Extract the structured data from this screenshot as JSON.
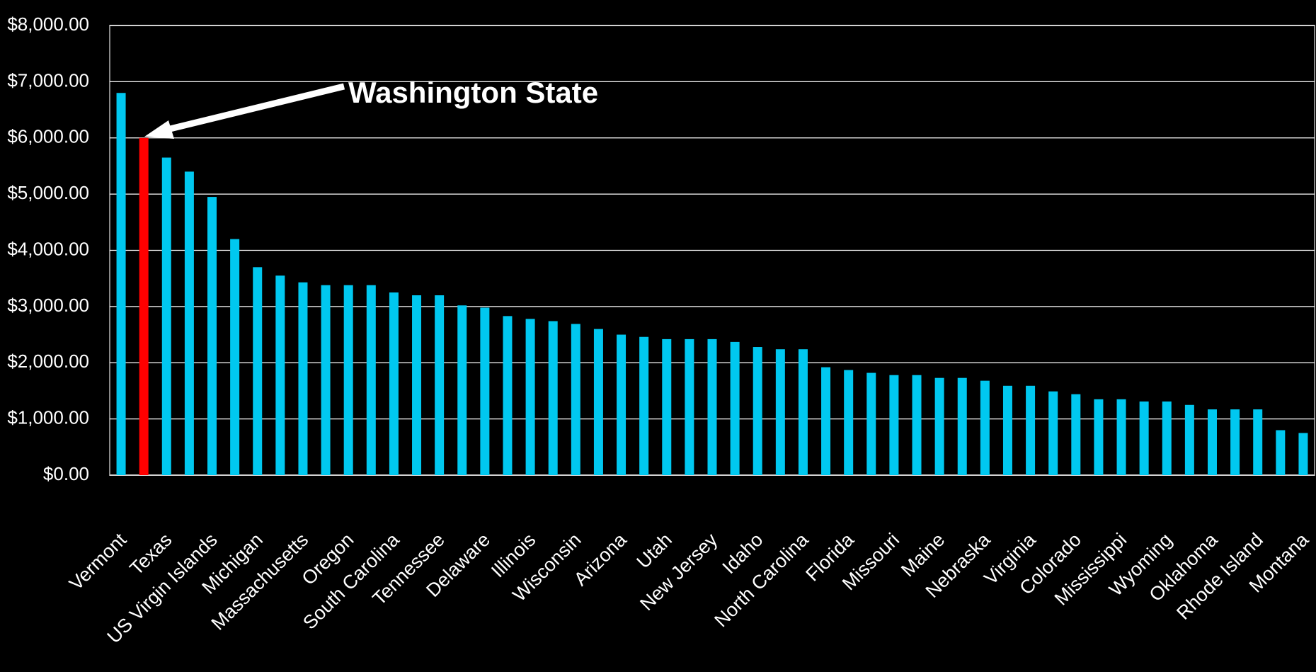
{
  "chart_data": {
    "type": "bar",
    "annotation": "Washington State",
    "categories": [
      "Vermont",
      null,
      "Texas",
      null,
      "US Virgin Islands",
      null,
      "Michigan",
      null,
      "Massachusetts",
      null,
      "Oregon",
      null,
      "South Carolina",
      null,
      "Tennessee",
      null,
      "Delaware",
      null,
      "Illinois",
      null,
      "Wisconsin",
      null,
      "Arizona",
      null,
      "Utah",
      null,
      "New Jersey",
      null,
      "Idaho",
      null,
      "North Carolina",
      null,
      "Florida",
      null,
      "Missouri",
      null,
      "Maine",
      null,
      "Nebraska",
      null,
      "Virginia",
      null,
      "Colorado",
      null,
      "Mississippi",
      null,
      "Wyoming",
      null,
      "Oklahoma",
      null,
      "Rhode Island",
      null,
      "Montana"
    ],
    "values": [
      6800,
      6000,
      5650,
      5400,
      4950,
      4200,
      3700,
      3550,
      3430,
      3380,
      3380,
      3380,
      3250,
      3200,
      3200,
      3020,
      2980,
      2830,
      2780,
      2740,
      2690,
      2600,
      2500,
      2460,
      2420,
      2420,
      2420,
      2370,
      2280,
      2240,
      2240,
      1920,
      1870,
      1820,
      1780,
      1780,
      1730,
      1730,
      1680,
      1590,
      1590,
      1490,
      1440,
      1350,
      1350,
      1310,
      1310,
      1250,
      1170,
      1170,
      1170,
      800,
      750
    ],
    "colors": [
      "#00c8f0",
      "#ff0000",
      "#00c8f0",
      "#00c8f0",
      "#00c8f0",
      "#00c8f0",
      "#00c8f0",
      "#00c8f0",
      "#00c8f0",
      "#00c8f0",
      "#00c8f0",
      "#00c8f0",
      "#00c8f0",
      "#00c8f0",
      "#00c8f0",
      "#00c8f0",
      "#00c8f0",
      "#00c8f0",
      "#00c8f0",
      "#00c8f0",
      "#00c8f0",
      "#00c8f0",
      "#00c8f0",
      "#00c8f0",
      "#00c8f0",
      "#00c8f0",
      "#00c8f0",
      "#00c8f0",
      "#00c8f0",
      "#00c8f0",
      "#00c8f0",
      "#00c8f0",
      "#00c8f0",
      "#00c8f0",
      "#00c8f0",
      "#00c8f0",
      "#00c8f0",
      "#00c8f0",
      "#00c8f0",
      "#00c8f0",
      "#00c8f0",
      "#00c8f0",
      "#00c8f0",
      "#00c8f0",
      "#00c8f0",
      "#00c8f0",
      "#00c8f0",
      "#00c8f0",
      "#00c8f0",
      "#00c8f0",
      "#00c8f0",
      "#00c8f0",
      "#00c8f0"
    ],
    "ylim": [
      0,
      8000
    ],
    "yticks": [
      {
        "value": 0,
        "label": "$0.00"
      },
      {
        "value": 1000,
        "label": "$1,000.00"
      },
      {
        "value": 2000,
        "label": "$2,000.00"
      },
      {
        "value": 3000,
        "label": "$3,000.00"
      },
      {
        "value": 4000,
        "label": "$4,000.00"
      },
      {
        "value": 5000,
        "label": "$5,000.00"
      },
      {
        "value": 6000,
        "label": "$6,000.00"
      },
      {
        "value": 7000,
        "label": "$7,000.00"
      },
      {
        "value": 8000,
        "label": "$8,000.00"
      }
    ],
    "grid": true
  }
}
